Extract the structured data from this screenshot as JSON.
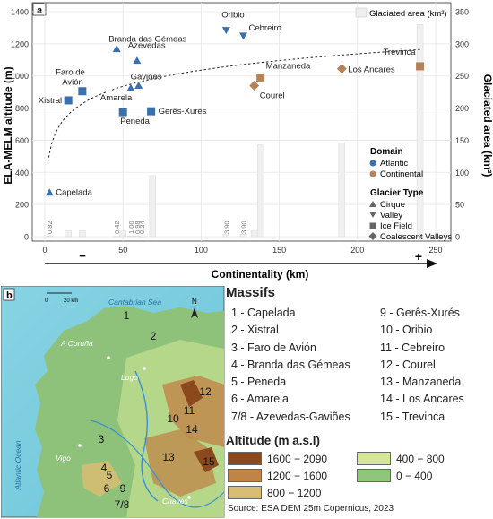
{
  "chart_data": {
    "type": "scatter",
    "panel_label": "a",
    "xlabel": "Continentality (km)",
    "ylabel_left": "ELA-MELM altitude (m)",
    "ylabel_right": "Glaciated area (km²)",
    "xlim": [
      0,
      250
    ],
    "ylim_left": [
      0,
      1400
    ],
    "ylim_right": [
      0,
      350
    ],
    "x_ticks": [
      0,
      50,
      100,
      150,
      200,
      250
    ],
    "y_ticks_left": [
      0,
      200,
      400,
      600,
      800,
      1000,
      1200,
      1400
    ],
    "y_ticks_right": [
      0,
      50,
      100,
      150,
      200,
      250,
      300,
      350
    ],
    "arrow_minus": "−",
    "arrow_plus": "+",
    "points": [
      {
        "name": "Capelada",
        "x": 3,
        "y": 275,
        "domain": "Atlantic",
        "type": "Cirque"
      },
      {
        "name": "Xistral",
        "x": 15,
        "y": 848,
        "domain": "Atlantic",
        "type": "Ice Field"
      },
      {
        "name": "Faro de Avión",
        "x": 24,
        "y": 905,
        "domain": "Atlantic",
        "type": "Ice Field"
      },
      {
        "name": "Branda das Gémeas",
        "x": 46,
        "y": 1168,
        "domain": "Atlantic",
        "type": "Cirque"
      },
      {
        "name": "Peneda",
        "x": 50,
        "y": 775,
        "domain": "Atlantic",
        "type": "Ice Field"
      },
      {
        "name": "Amarela",
        "x": 55,
        "y": 925,
        "domain": "Atlantic",
        "type": "Cirque"
      },
      {
        "name": "Gaviões",
        "x": 60,
        "y": 940,
        "domain": "Atlantic",
        "type": "Cirque"
      },
      {
        "name": "Azevedas",
        "x": 59,
        "y": 1095,
        "domain": "Atlantic",
        "type": "Cirque"
      },
      {
        "name": "Gerês-Xurés",
        "x": 68,
        "y": 780,
        "domain": "Atlantic",
        "type": "Ice Field"
      },
      {
        "name": "Oribio",
        "x": 116,
        "y": 1285,
        "domain": "Atlantic",
        "type": "Valley"
      },
      {
        "name": "Cebreiro",
        "x": 127,
        "y": 1250,
        "domain": "Atlantic",
        "type": "Valley"
      },
      {
        "name": "Courel",
        "x": 134,
        "y": 940,
        "domain": "Continental",
        "type": "Coalescent Valleys"
      },
      {
        "name": "Manzaneda",
        "x": 138,
        "y": 990,
        "domain": "Continental",
        "type": "Ice Field"
      },
      {
        "name": "Los Ancares",
        "x": 190,
        "y": 1045,
        "domain": "Continental",
        "type": "Coalescent Valleys"
      },
      {
        "name": "Trevinca",
        "x": 240,
        "y": 1060,
        "domain": "Continental",
        "type": "Ice Field"
      }
    ],
    "glaciated_area": [
      {
        "x": 3,
        "value": 0.82,
        "label": "0.82"
      },
      {
        "x": 15,
        "value": 9,
        "label": ""
      },
      {
        "x": 24,
        "value": 9,
        "label": ""
      },
      {
        "x": 46,
        "value": 0.42,
        "label": "0.42"
      },
      {
        "x": 55,
        "value": 1.0,
        "label": "1.00"
      },
      {
        "x": 59,
        "value": 0.98,
        "label": "0.98"
      },
      {
        "x": 62,
        "value": 0.24,
        "label": "0.24"
      },
      {
        "x": 50,
        "value": 9,
        "label": ""
      },
      {
        "x": 69,
        "value": 95,
        "label": ""
      },
      {
        "x": 116,
        "value": 3.9,
        "label": "3.90"
      },
      {
        "x": 127,
        "value": 3.9,
        "label": "3.90"
      },
      {
        "x": 134,
        "value": 9,
        "label": ""
      },
      {
        "x": 138,
        "value": 143,
        "label": ""
      },
      {
        "x": 190,
        "value": 146,
        "label": ""
      },
      {
        "x": 240,
        "value": 330,
        "label": ""
      }
    ],
    "trend": "logarithmic",
    "legend": {
      "area_label": "Glaciated area (km²)",
      "domain_title": "Domain",
      "domains": [
        {
          "name": "Atlantic",
          "color": "#3a6fb0"
        },
        {
          "name": "Continental",
          "color": "#b5835a"
        }
      ],
      "type_title": "Glacier Type",
      "types": [
        "Cirque",
        "Valley",
        "Ice Field",
        "Coalescent Valleys"
      ]
    }
  },
  "map_panel": {
    "label": "b",
    "scale_0": "0",
    "scale_20": "20 km",
    "north": "N",
    "sea_label": "Cantabrian Sea",
    "ocean_label": "Atlantic Ocean",
    "cities": [
      "A Coruña",
      "Lugo",
      "Vigo",
      "Chaves"
    ],
    "massif_numbers": [
      "1",
      "2",
      "3",
      "4",
      "5",
      "6",
      "7/8",
      "9",
      "10",
      "11",
      "12",
      "13",
      "14",
      "15"
    ]
  },
  "massifs": {
    "title": "Massifs",
    "col1": [
      "1 - Capelada",
      "2 - Xistral",
      "3 - Faro de Avión",
      "4 - Branda das Gémeas",
      "5 - Peneda",
      "6 - Amarela",
      "7/8 - Azevedas-Gaviões"
    ],
    "col2": [
      "9 - Gerês-Xurés",
      "10 - Oribio",
      "11 - Cebreiro",
      "12 - Courel",
      "13 - Manzaneda",
      "14 - Los Ancares",
      "15 - Trevinca"
    ]
  },
  "altitude_legend": {
    "title": "Altitude (m a.s.l)",
    "items": [
      {
        "label": "1600 − 2090",
        "color": "#8b4a1e"
      },
      {
        "label": "1200 − 1600",
        "color": "#c08446"
      },
      {
        "label": "800 − 1200",
        "color": "#d9bd72"
      },
      {
        "label": "400 − 800",
        "color": "#d3e69a"
      },
      {
        "label": "0 − 400",
        "color": "#8fc67a"
      }
    ]
  },
  "source": "Source: ESA DEM 25m Copernicus, 2023"
}
